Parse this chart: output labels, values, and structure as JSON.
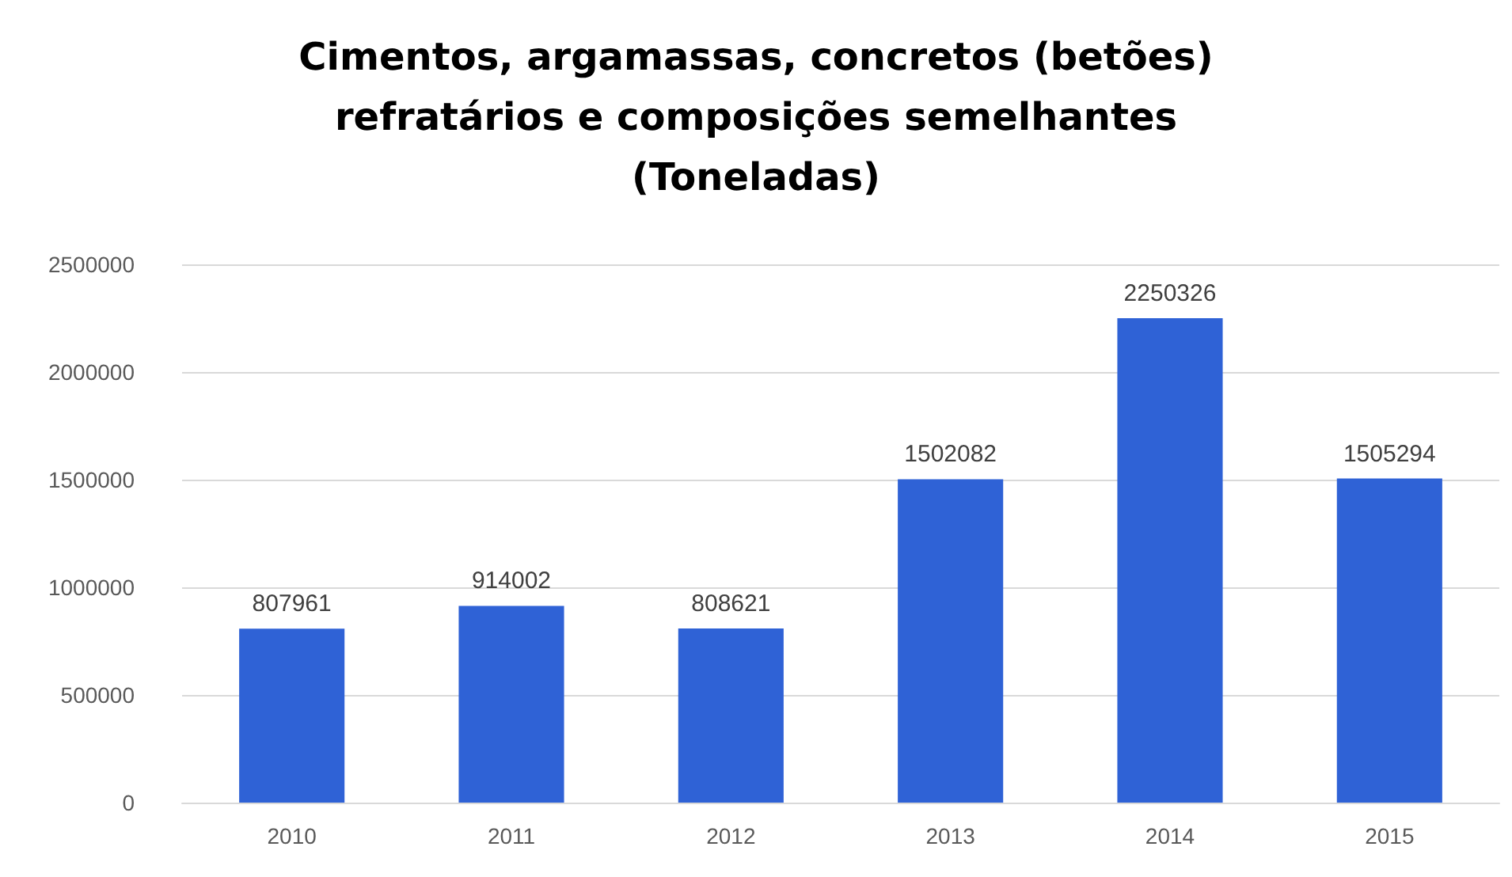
{
  "chart_data": {
    "type": "bar",
    "title": "Cimentos, argamassas, concretos (betões)\nrefratários e composições semelhantes\n(Toneladas)",
    "categories": [
      "2010",
      "2011",
      "2012",
      "2013",
      "2014",
      "2015"
    ],
    "values": [
      807961,
      914002,
      808621,
      1502082,
      2250326,
      1505294
    ],
    "color": "#2f62d6",
    "ylim": [
      0,
      2500000
    ],
    "yticks": [
      0,
      500000,
      1000000,
      1500000,
      2000000,
      2500000
    ],
    "grid": "y",
    "data_labels": true
  }
}
